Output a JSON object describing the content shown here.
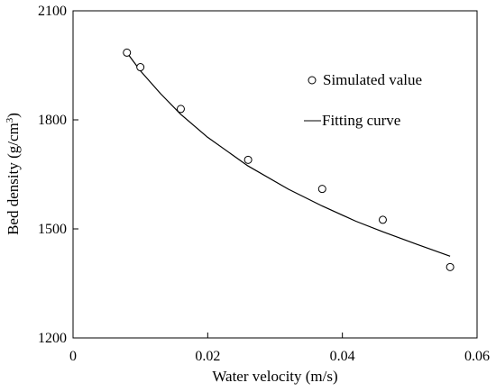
{
  "chart_data": {
    "type": "scatter",
    "title": "",
    "xlabel": "Water velocity (m/s)",
    "ylabel_main": "Bed density (g/cm",
    "ylabel_sup": "3",
    "ylabel_tail": ")",
    "xlim": [
      0,
      0.06
    ],
    "ylim": [
      1200,
      2100
    ],
    "x_ticks": [
      0,
      0.02,
      0.04,
      0.06
    ],
    "x_tick_labels": [
      "0",
      "0.02",
      "0.04",
      "0.06"
    ],
    "y_ticks": [
      1200,
      1500,
      1800,
      2100
    ],
    "y_tick_labels": [
      "1200",
      "1500",
      "1800",
      "2100"
    ],
    "grid": false,
    "legend_position": "top-right",
    "series": [
      {
        "name": "Simulated value",
        "kind": "markers",
        "marker": "open-circle",
        "x": [
          0.008,
          0.01,
          0.016,
          0.026,
          0.037,
          0.046,
          0.056
        ],
        "y": [
          1985,
          1945,
          1830,
          1690,
          1610,
          1525,
          1395
        ]
      },
      {
        "name": "Fitting curve",
        "kind": "line",
        "x": [
          0.008,
          0.01,
          0.013,
          0.016,
          0.02,
          0.026,
          0.032,
          0.037,
          0.042,
          0.046,
          0.051,
          0.056
        ],
        "y": [
          1985,
          1935,
          1872,
          1815,
          1752,
          1673,
          1609,
          1563,
          1521,
          1492,
          1458,
          1425
        ]
      }
    ]
  }
}
